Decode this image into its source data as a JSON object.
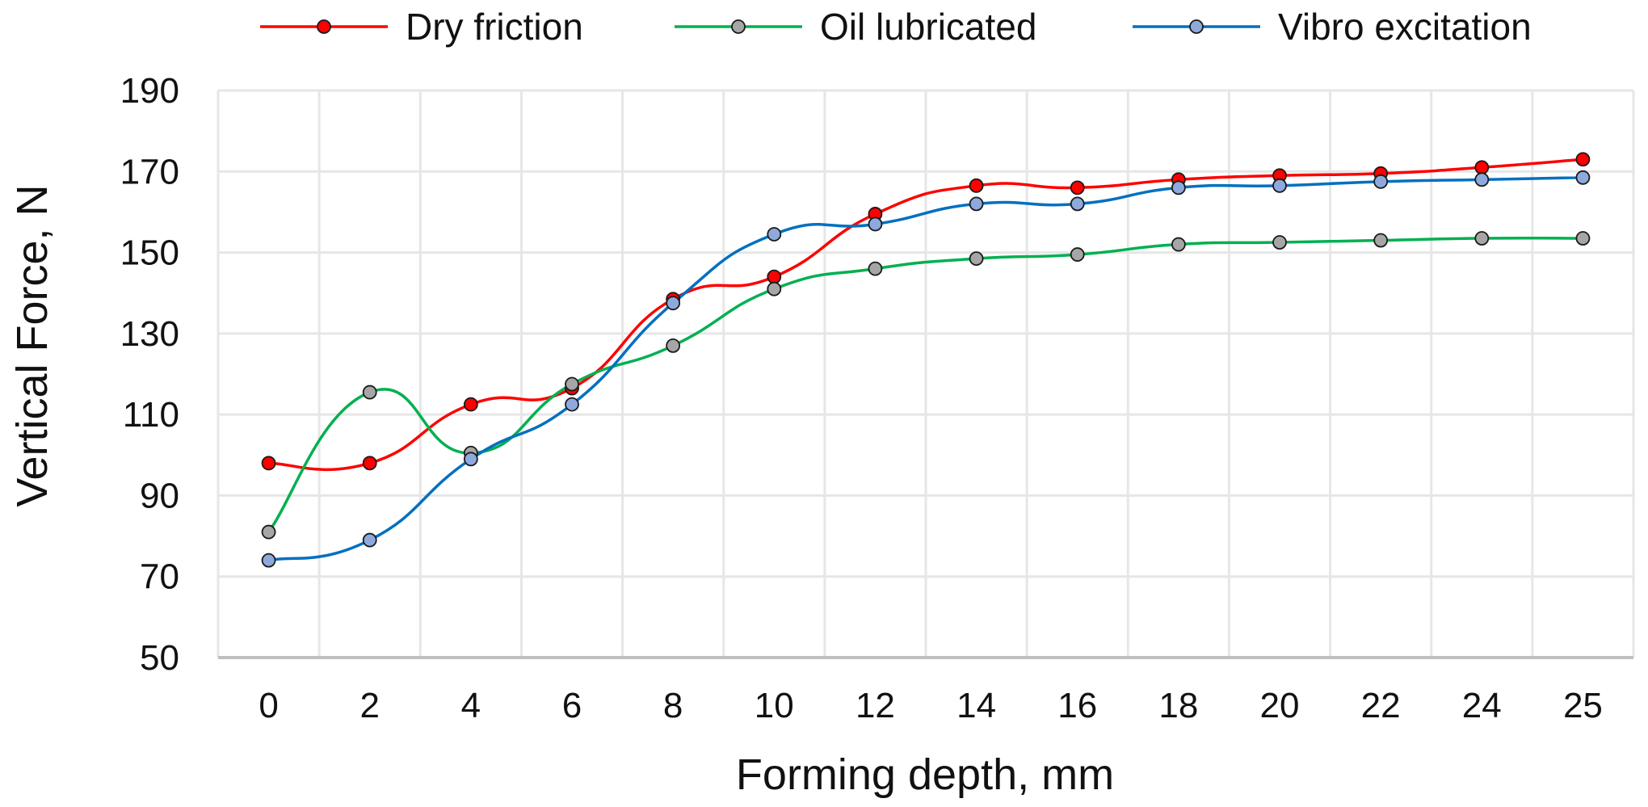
{
  "chart_data": {
    "type": "line",
    "title": "",
    "xlabel": "Forming depth, mm",
    "ylabel": "Vertical Force, N",
    "categories": [
      "0",
      "2",
      "4",
      "6",
      "8",
      "10",
      "12",
      "14",
      "16",
      "18",
      "20",
      "22",
      "24",
      "25"
    ],
    "ylim": [
      50,
      190
    ],
    "yticks": [
      50,
      70,
      90,
      110,
      130,
      150,
      170,
      190
    ],
    "grid": true,
    "legend_position": "top",
    "smooth": true,
    "series": [
      {
        "name": "Dry friction",
        "line_color": "#FF0000",
        "marker_color": "#FF0000",
        "values": [
          98,
          98,
          112.5,
          116.5,
          138.5,
          144,
          159.5,
          166.5,
          166,
          168,
          169,
          169.5,
          171,
          173
        ]
      },
      {
        "name": "Oil lubricated",
        "line_color": "#00B050",
        "marker_color": "#A6A6A6",
        "values": [
          81,
          115.5,
          100.5,
          117.5,
          127,
          141,
          146,
          148.5,
          149.5,
          152,
          152.5,
          153,
          153.5,
          153.5
        ]
      },
      {
        "name": "Vibro excitation",
        "line_color": "#0070C0",
        "marker_color": "#8EA9DB",
        "values": [
          74,
          79,
          99,
          112.5,
          137.5,
          154.5,
          157,
          162,
          162,
          166,
          166.5,
          167.5,
          168,
          168.5
        ]
      }
    ]
  }
}
